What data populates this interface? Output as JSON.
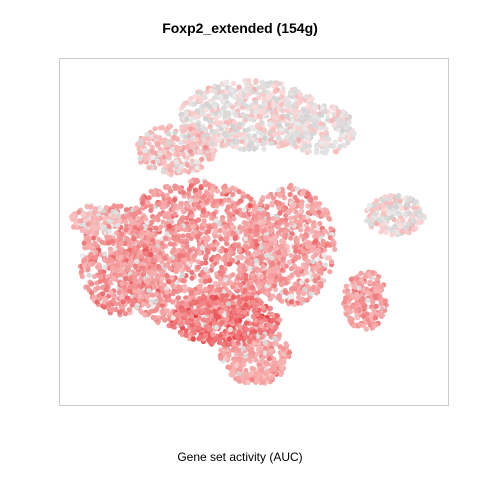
{
  "chart_data": {
    "type": "scatter",
    "title": "Foxp2_extended (154g)",
    "xlabel": "Gene set activity (AUC)",
    "ylabel": "",
    "grid": false,
    "legend": "none",
    "frame_color": "#cccccc",
    "colors": {
      "inactive": "#d9d9d9",
      "low": "#fcdcdc",
      "mid": "#f5a3a3",
      "high": "#e8383d"
    },
    "point_count_estimate": 6000
  }
}
